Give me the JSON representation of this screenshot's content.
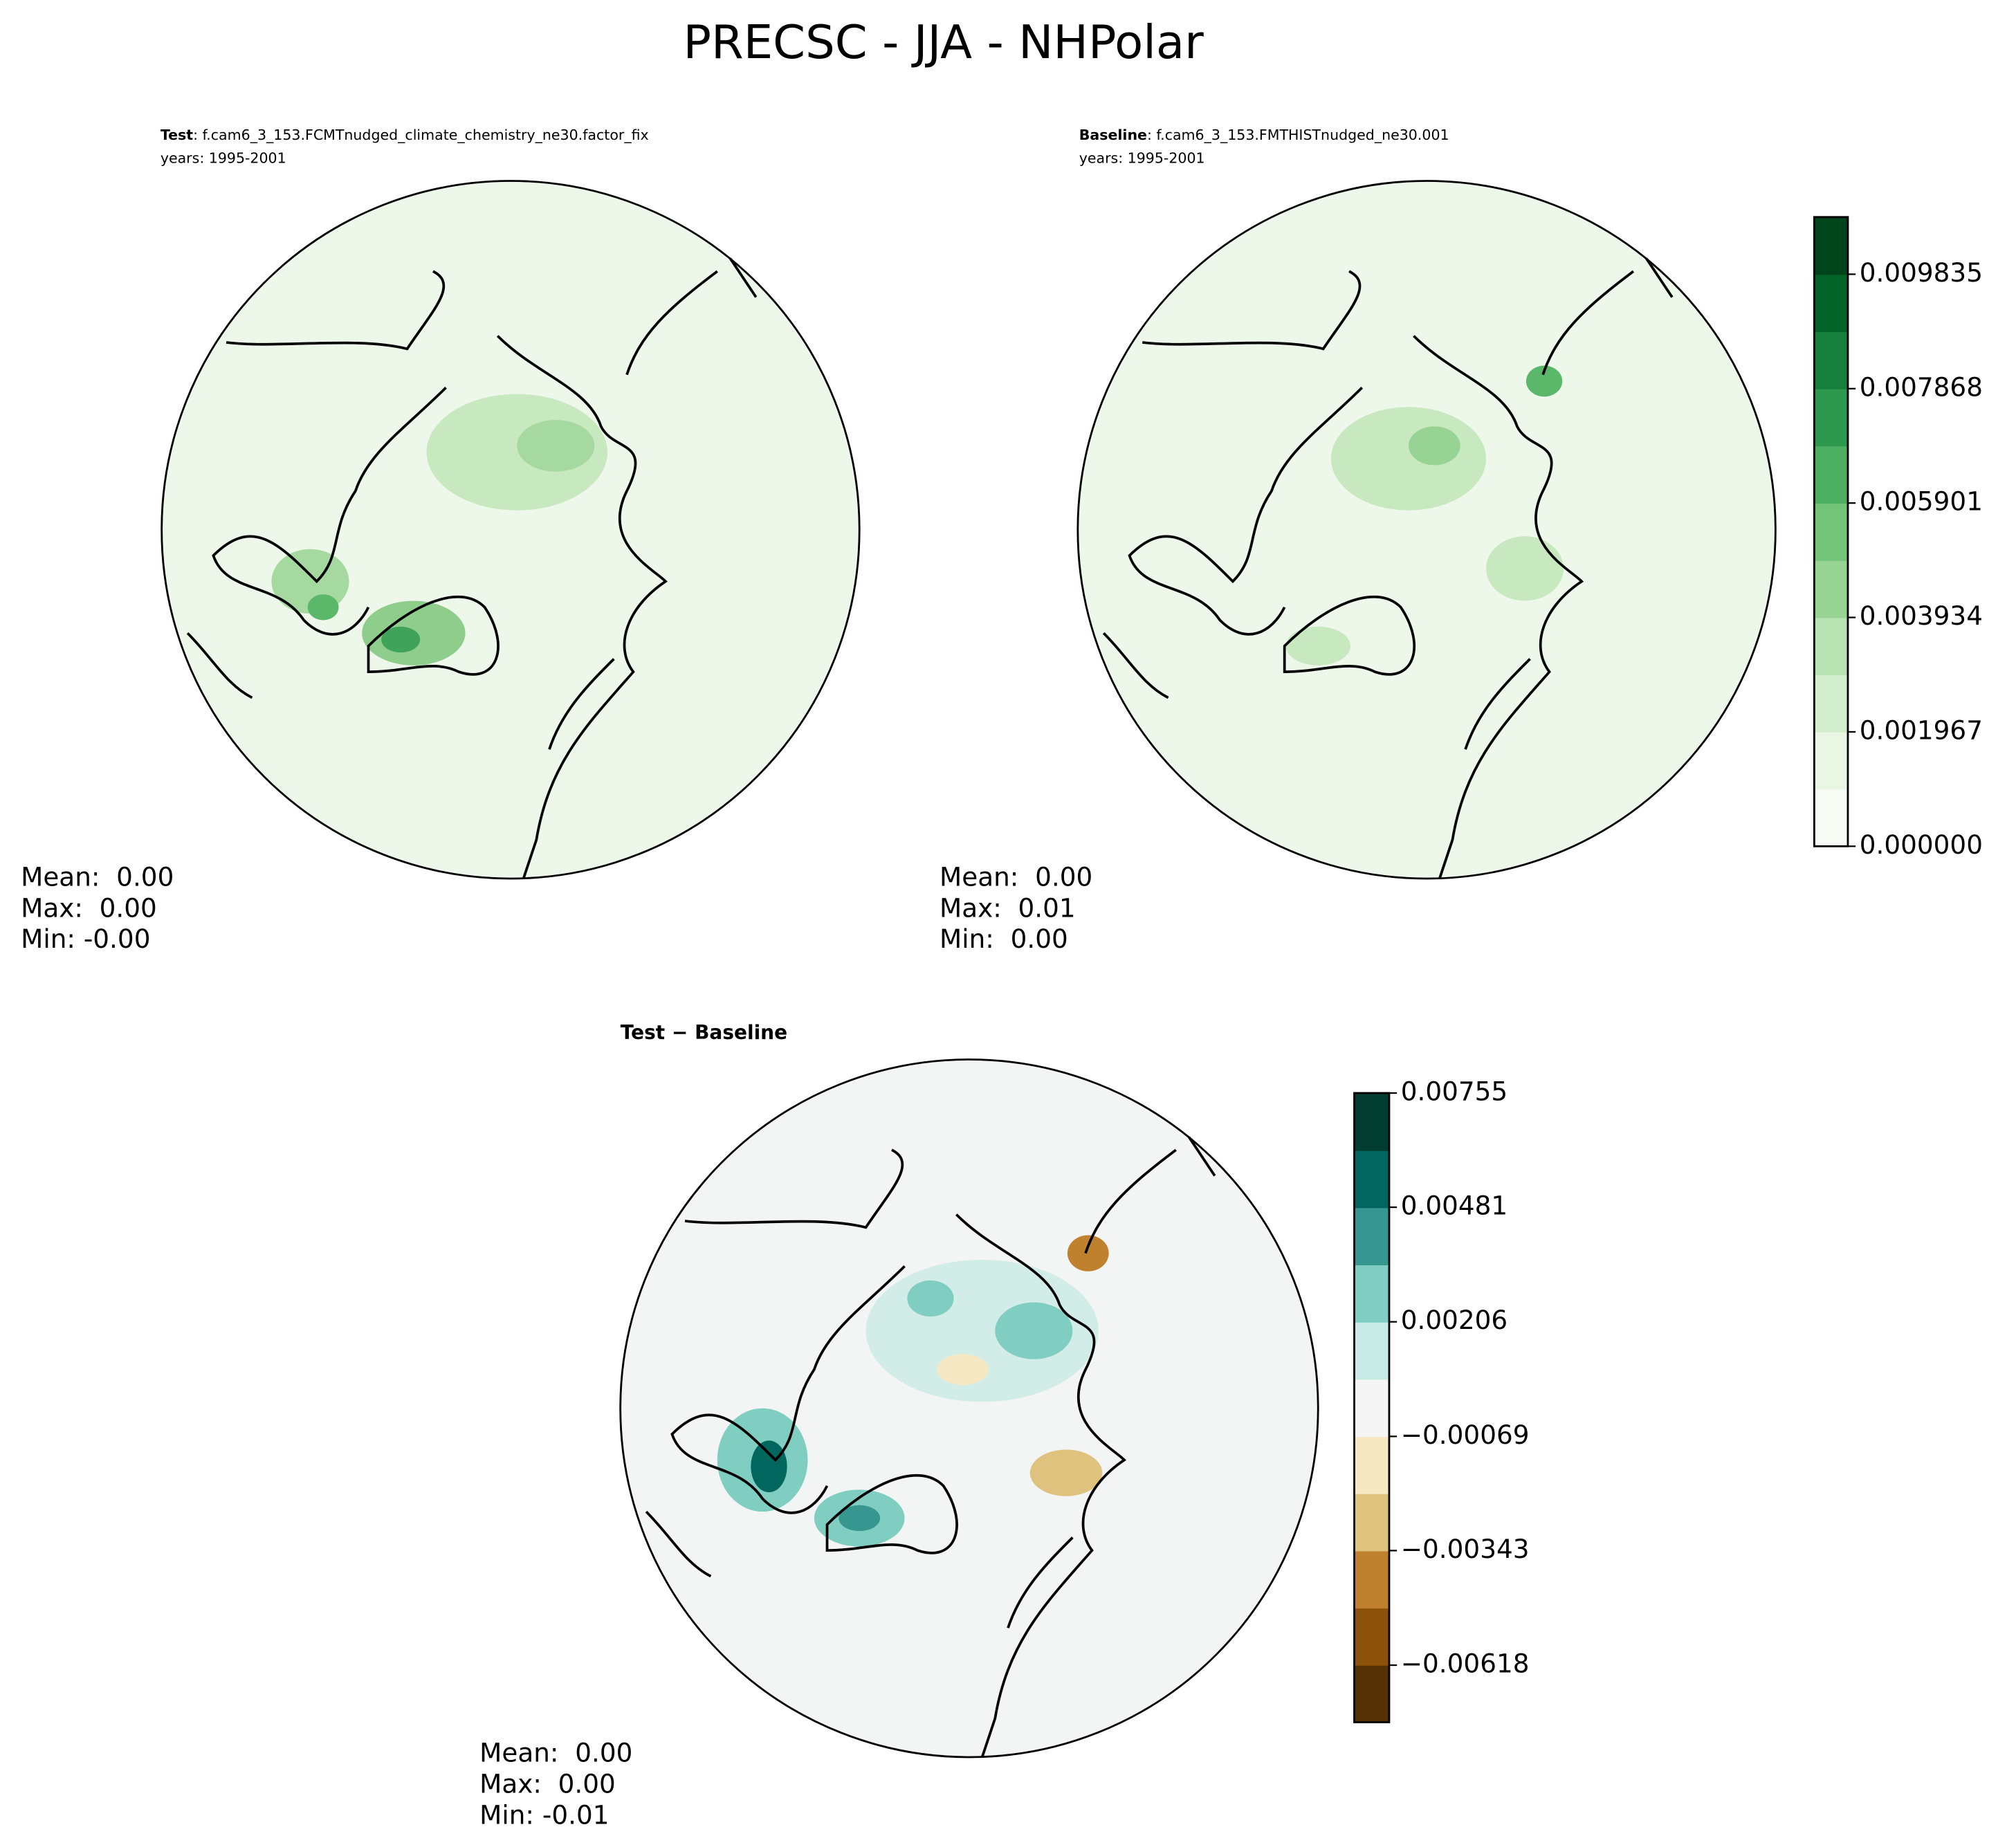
{
  "title": "PRECSC - JJA - NHPolar",
  "panels": [
    {
      "label": "Test",
      "case": ": f.cam6_3_153.FCMTnudged_climate_chemistry_ne30.factor_fix",
      "years": "years: 1995-2001",
      "stats": [
        "Mean:  0.00",
        "Max:  0.00",
        "Min: -0.00"
      ]
    },
    {
      "label": "Baseline",
      "case": ": f.cam6_3_153.FMTHISTnudged_ne30.001",
      "years": "years: 1995-2001",
      "stats": [
        "Mean:  0.00",
        "Max:  0.01",
        "Min:  0.00"
      ]
    },
    {
      "label": "Test − Baseline",
      "stats": [
        "Mean:  0.00",
        "Max:  0.00",
        "Min: -0.01"
      ]
    }
  ],
  "colorbars": [
    {
      "lim": [
        0,
        0.010818
      ],
      "ticks": [
        {
          "value": 0,
          "label": "0.000000"
        },
        0.001967,
        0.003934,
        0.005901,
        0.007868,
        0.009835
      ],
      "colors": [
        "#f7fcf5",
        "#e8f6e3",
        "#d3eecd",
        "#b7e2b1",
        "#97d494",
        "#73c378",
        "#4daf62",
        "#2f984f",
        "#157f3b",
        "#036429",
        "#00441b"
      ]
    },
    {
      "lim": [
        -0.00755,
        0.00755
      ],
      "ticks": [
        {
          "value": -0.00618,
          "label": "−0.00618"
        },
        {
          "value": -0.00343,
          "label": "−0.00343"
        },
        {
          "value": -0.00069,
          "label": "−0.00069"
        },
        0.00206,
        0.00481,
        0.00755
      ],
      "colors": [
        "#543005",
        "#8c510a",
        "#bf812d",
        "#dfc27d",
        "#f6e8c3",
        "#f5f5f5",
        "#c7eae5",
        "#80cdc1",
        "#35978f",
        "#01665e",
        "#003c30"
      ]
    }
  ]
}
